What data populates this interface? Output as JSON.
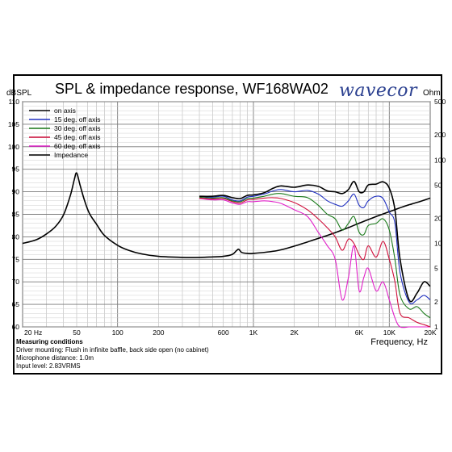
{
  "title": "SPL & impedance response, WF168WA02",
  "logo_text": "wavecor",
  "y_left_unit": "dBSPL",
  "y_right_unit": "Ohm",
  "x_axis_label": "Frequency, Hz",
  "measuring": {
    "header": "Measuring conditions",
    "lines": [
      "Driver mounting: Flush in infinite baffle, back side open (no cabinet)",
      "Microphone distance: 1.0m",
      "Input level: 2.83VRMS"
    ]
  },
  "chart_data": {
    "type": "line",
    "title": "SPL & impedance response, WF168WA02",
    "xlabel": "Frequency, Hz",
    "ylabel": "dBSPL",
    "ylabel_right": "Ohm",
    "x_scale": "log",
    "xlim": [
      20,
      20000
    ],
    "ylim": [
      60,
      110
    ],
    "ylim_right": [
      1,
      500
    ],
    "y_right_scale": "log",
    "grid": true,
    "legend_position": "top-left",
    "x_ticks": [
      "20 Hz",
      "50",
      "100",
      "200",
      "600",
      "1K",
      "2K",
      "6K",
      "10K",
      "20K"
    ],
    "x_tick_values": [
      20,
      50,
      100,
      200,
      600,
      1000,
      2000,
      6000,
      10000,
      20000
    ],
    "y_ticks": [
      60,
      65,
      70,
      75,
      80,
      85,
      90,
      95,
      100,
      105,
      110
    ],
    "y_right_ticks": [
      1,
      2,
      5,
      10,
      20,
      50,
      100,
      200,
      500
    ],
    "y_right_tick_values": [
      1,
      2,
      5,
      10,
      20,
      50,
      100,
      200,
      500
    ],
    "series": [
      {
        "name": "on axis",
        "color": "#000000",
        "x": [
          400,
          500,
          600,
          700,
          800,
          900,
          1000,
          1200,
          1400,
          1600,
          2000,
          2500,
          3000,
          3500,
          4000,
          4500,
          5000,
          5500,
          6000,
          6500,
          7000,
          8000,
          9000,
          10000,
          11000,
          12000,
          14000,
          16000,
          18000,
          20000
        ],
        "y": [
          89,
          89,
          89.2,
          88.7,
          88.5,
          89.2,
          89.3,
          89.8,
          90.8,
          91.3,
          91,
          91.5,
          91.2,
          90.2,
          90,
          89.6,
          90.5,
          92.3,
          90,
          90,
          91.5,
          91.7,
          92.2,
          90.8,
          86,
          75,
          66,
          67.5,
          70,
          69
        ]
      },
      {
        "name": "15 deg. off axis",
        "color": "#2030c0",
        "x": [
          400,
          500,
          600,
          700,
          800,
          900,
          1000,
          1200,
          1400,
          1600,
          2000,
          2500,
          3000,
          3500,
          4000,
          4500,
          5000,
          5500,
          6000,
          6500,
          7000,
          8000,
          9000,
          10000,
          11000,
          12000,
          14000,
          16000,
          18000,
          20000
        ],
        "y": [
          89,
          88.8,
          89,
          88.2,
          88,
          88.8,
          89,
          89.5,
          90.2,
          90.5,
          90,
          90.3,
          89.5,
          88,
          87.2,
          86.8,
          88,
          89.5,
          87,
          86.5,
          88,
          89,
          88.5,
          85.5,
          83,
          72,
          65.5,
          66,
          67,
          66
        ]
      },
      {
        "name": "30 deg. off axis",
        "color": "#1a7a1a",
        "x": [
          400,
          500,
          600,
          700,
          800,
          900,
          1000,
          1200,
          1400,
          1600,
          2000,
          2500,
          3000,
          3500,
          4000,
          4500,
          5000,
          5500,
          6000,
          6500,
          7000,
          8000,
          9000,
          10000,
          11000,
          12000,
          14000,
          16000,
          18000,
          20000
        ],
        "y": [
          88.8,
          88.6,
          88.7,
          88,
          87.8,
          88.5,
          88.6,
          89,
          89.5,
          89.6,
          89,
          88.7,
          87,
          85,
          84,
          81.5,
          83,
          84.5,
          81,
          80.5,
          82.5,
          83,
          84,
          81.5,
          75,
          67,
          64,
          64.5,
          63,
          62
        ]
      },
      {
        "name": "45 deg. off axis",
        "color": "#d0103c",
        "x": [
          400,
          500,
          600,
          700,
          800,
          900,
          1000,
          1200,
          1400,
          1600,
          2000,
          2500,
          3000,
          3500,
          4000,
          4500,
          5000,
          5500,
          6000,
          6500,
          7000,
          8000,
          9000,
          10000,
          11000,
          12000,
          14000,
          16000,
          18000,
          20000
        ],
        "y": [
          88.6,
          88.4,
          88.5,
          87.8,
          87.5,
          88.2,
          88.3,
          88.6,
          88.7,
          88.5,
          87.6,
          86,
          84,
          82,
          80,
          77,
          79.5,
          78.5,
          76,
          75,
          78,
          75.5,
          79,
          75,
          70,
          63,
          62,
          61,
          60.5,
          60
        ]
      },
      {
        "name": "60 deg. off axis",
        "color": "#e020c8",
        "x": [
          400,
          500,
          600,
          700,
          800,
          900,
          1000,
          1200,
          1400,
          1600,
          2000,
          2500,
          3000,
          3500,
          4000,
          4500,
          5000,
          5500,
          6000,
          6500,
          7000,
          8000,
          9000,
          10000,
          11000,
          12000,
          14000,
          16000,
          18000,
          20000
        ],
        "y": [
          88.5,
          88.2,
          88.2,
          87.5,
          87.2,
          87.8,
          87.8,
          88,
          87.8,
          87.4,
          86,
          84.5,
          81,
          78,
          75,
          66,
          71,
          78,
          68,
          71,
          73,
          68,
          70,
          66,
          62,
          60,
          60,
          60,
          60,
          60
        ]
      },
      {
        "name": "Impedance",
        "color": "#000000",
        "axis": "right",
        "x": [
          20,
          25,
          30,
          35,
          40,
          45,
          48,
          50,
          53,
          57,
          62,
          70,
          80,
          100,
          120,
          150,
          200,
          300,
          400,
          500,
          600,
          700,
          750,
          780,
          820,
          900,
          1000,
          1500,
          2000,
          3000,
          4000,
          5000,
          6000,
          8000,
          10000,
          13000,
          16000,
          20000
        ],
        "y": [
          10,
          11,
          13,
          16,
          22,
          38,
          58,
          70,
          50,
          33,
          23,
          17,
          12.5,
          9.5,
          8.3,
          7.5,
          7,
          6.8,
          6.8,
          6.9,
          7,
          7.4,
          8.2,
          8.5,
          7.8,
          7.6,
          7.6,
          8.2,
          9.3,
          11.5,
          13.5,
          15.5,
          17.5,
          21,
          24,
          28,
          31,
          35
        ]
      }
    ]
  }
}
